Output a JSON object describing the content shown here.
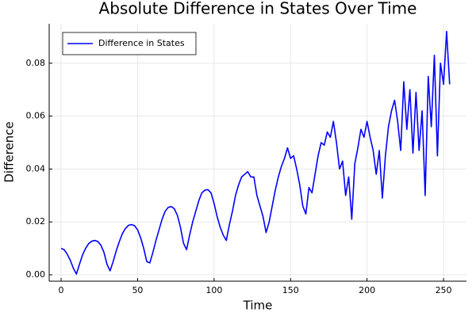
{
  "chart_data": {
    "type": "line",
    "title": "Absolute Difference in States Over Time",
    "xlabel": "Time",
    "ylabel": "Difference",
    "x": [
      0,
      2,
      4,
      6,
      8,
      10,
      12,
      14,
      16,
      18,
      20,
      22,
      24,
      26,
      28,
      30,
      32,
      34,
      36,
      38,
      40,
      42,
      44,
      46,
      48,
      50,
      52,
      54,
      56,
      58,
      60,
      62,
      64,
      66,
      68,
      70,
      72,
      74,
      76,
      78,
      80,
      82,
      84,
      86,
      88,
      90,
      92,
      94,
      96,
      98,
      100,
      102,
      104,
      106,
      108,
      110,
      112,
      114,
      116,
      118,
      120,
      122,
      124,
      126,
      128,
      130,
      132,
      134,
      136,
      138,
      140,
      142,
      144,
      146,
      148,
      150,
      152,
      154,
      156,
      158,
      160,
      162,
      164,
      166,
      168,
      170,
      172,
      174,
      176,
      178,
      180,
      182,
      184,
      186,
      188,
      190,
      192,
      194,
      196,
      198,
      200,
      202,
      204,
      206,
      208,
      210,
      212,
      214,
      216,
      218,
      220,
      222,
      224,
      226,
      228,
      230,
      232,
      234,
      236,
      238,
      240,
      242,
      244,
      246,
      248,
      250,
      252,
      254
    ],
    "series": [
      {
        "name": "Difference in States",
        "color": "#0000ff",
        "values": [
          0.01,
          0.0095,
          0.0078,
          0.0055,
          0.0025,
          0.0003,
          0.004,
          0.0075,
          0.01,
          0.0118,
          0.0127,
          0.013,
          0.0126,
          0.0112,
          0.0085,
          0.004,
          0.0015,
          0.005,
          0.009,
          0.0125,
          0.0155,
          0.0175,
          0.0187,
          0.019,
          0.0186,
          0.017,
          0.014,
          0.01,
          0.005,
          0.0045,
          0.0085,
          0.013,
          0.017,
          0.021,
          0.024,
          0.0255,
          0.0258,
          0.025,
          0.0225,
          0.018,
          0.012,
          0.0095,
          0.015,
          0.02,
          0.024,
          0.028,
          0.031,
          0.032,
          0.0322,
          0.031,
          0.027,
          0.022,
          0.018,
          0.015,
          0.013,
          0.019,
          0.024,
          0.03,
          0.034,
          0.037,
          0.038,
          0.039,
          0.037,
          0.037,
          0.03,
          0.026,
          0.022,
          0.016,
          0.02,
          0.026,
          0.032,
          0.037,
          0.041,
          0.044,
          0.048,
          0.044,
          0.045,
          0.04,
          0.034,
          0.026,
          0.023,
          0.033,
          0.031,
          0.038,
          0.045,
          0.05,
          0.049,
          0.054,
          0.052,
          0.058,
          0.05,
          0.04,
          0.043,
          0.03,
          0.037,
          0.021,
          0.042,
          0.048,
          0.055,
          0.052,
          0.058,
          0.052,
          0.047,
          0.038,
          0.047,
          0.029,
          0.045,
          0.056,
          0.062,
          0.066,
          0.058,
          0.047,
          0.073,
          0.055,
          0.07,
          0.046,
          0.069,
          0.047,
          0.062,
          0.03,
          0.075,
          0.056,
          0.083,
          0.045,
          0.08,
          0.072,
          0.092,
          0.072
        ]
      }
    ],
    "xlim": [
      -7.8,
      265
    ],
    "xticks": [
      0,
      50,
      100,
      150,
      200,
      250
    ],
    "ylim": [
      -0.0024,
      0.0949
    ],
    "yticks": [
      {
        "value": 0,
        "label": "0.00"
      },
      {
        "value": 0.02,
        "label": "0.02"
      },
      {
        "value": 0.04,
        "label": "0.04"
      },
      {
        "value": 0.06,
        "label": "0.06"
      },
      {
        "value": 0.08,
        "label": "0.08"
      }
    ],
    "grid": true,
    "legend": "top-left"
  }
}
